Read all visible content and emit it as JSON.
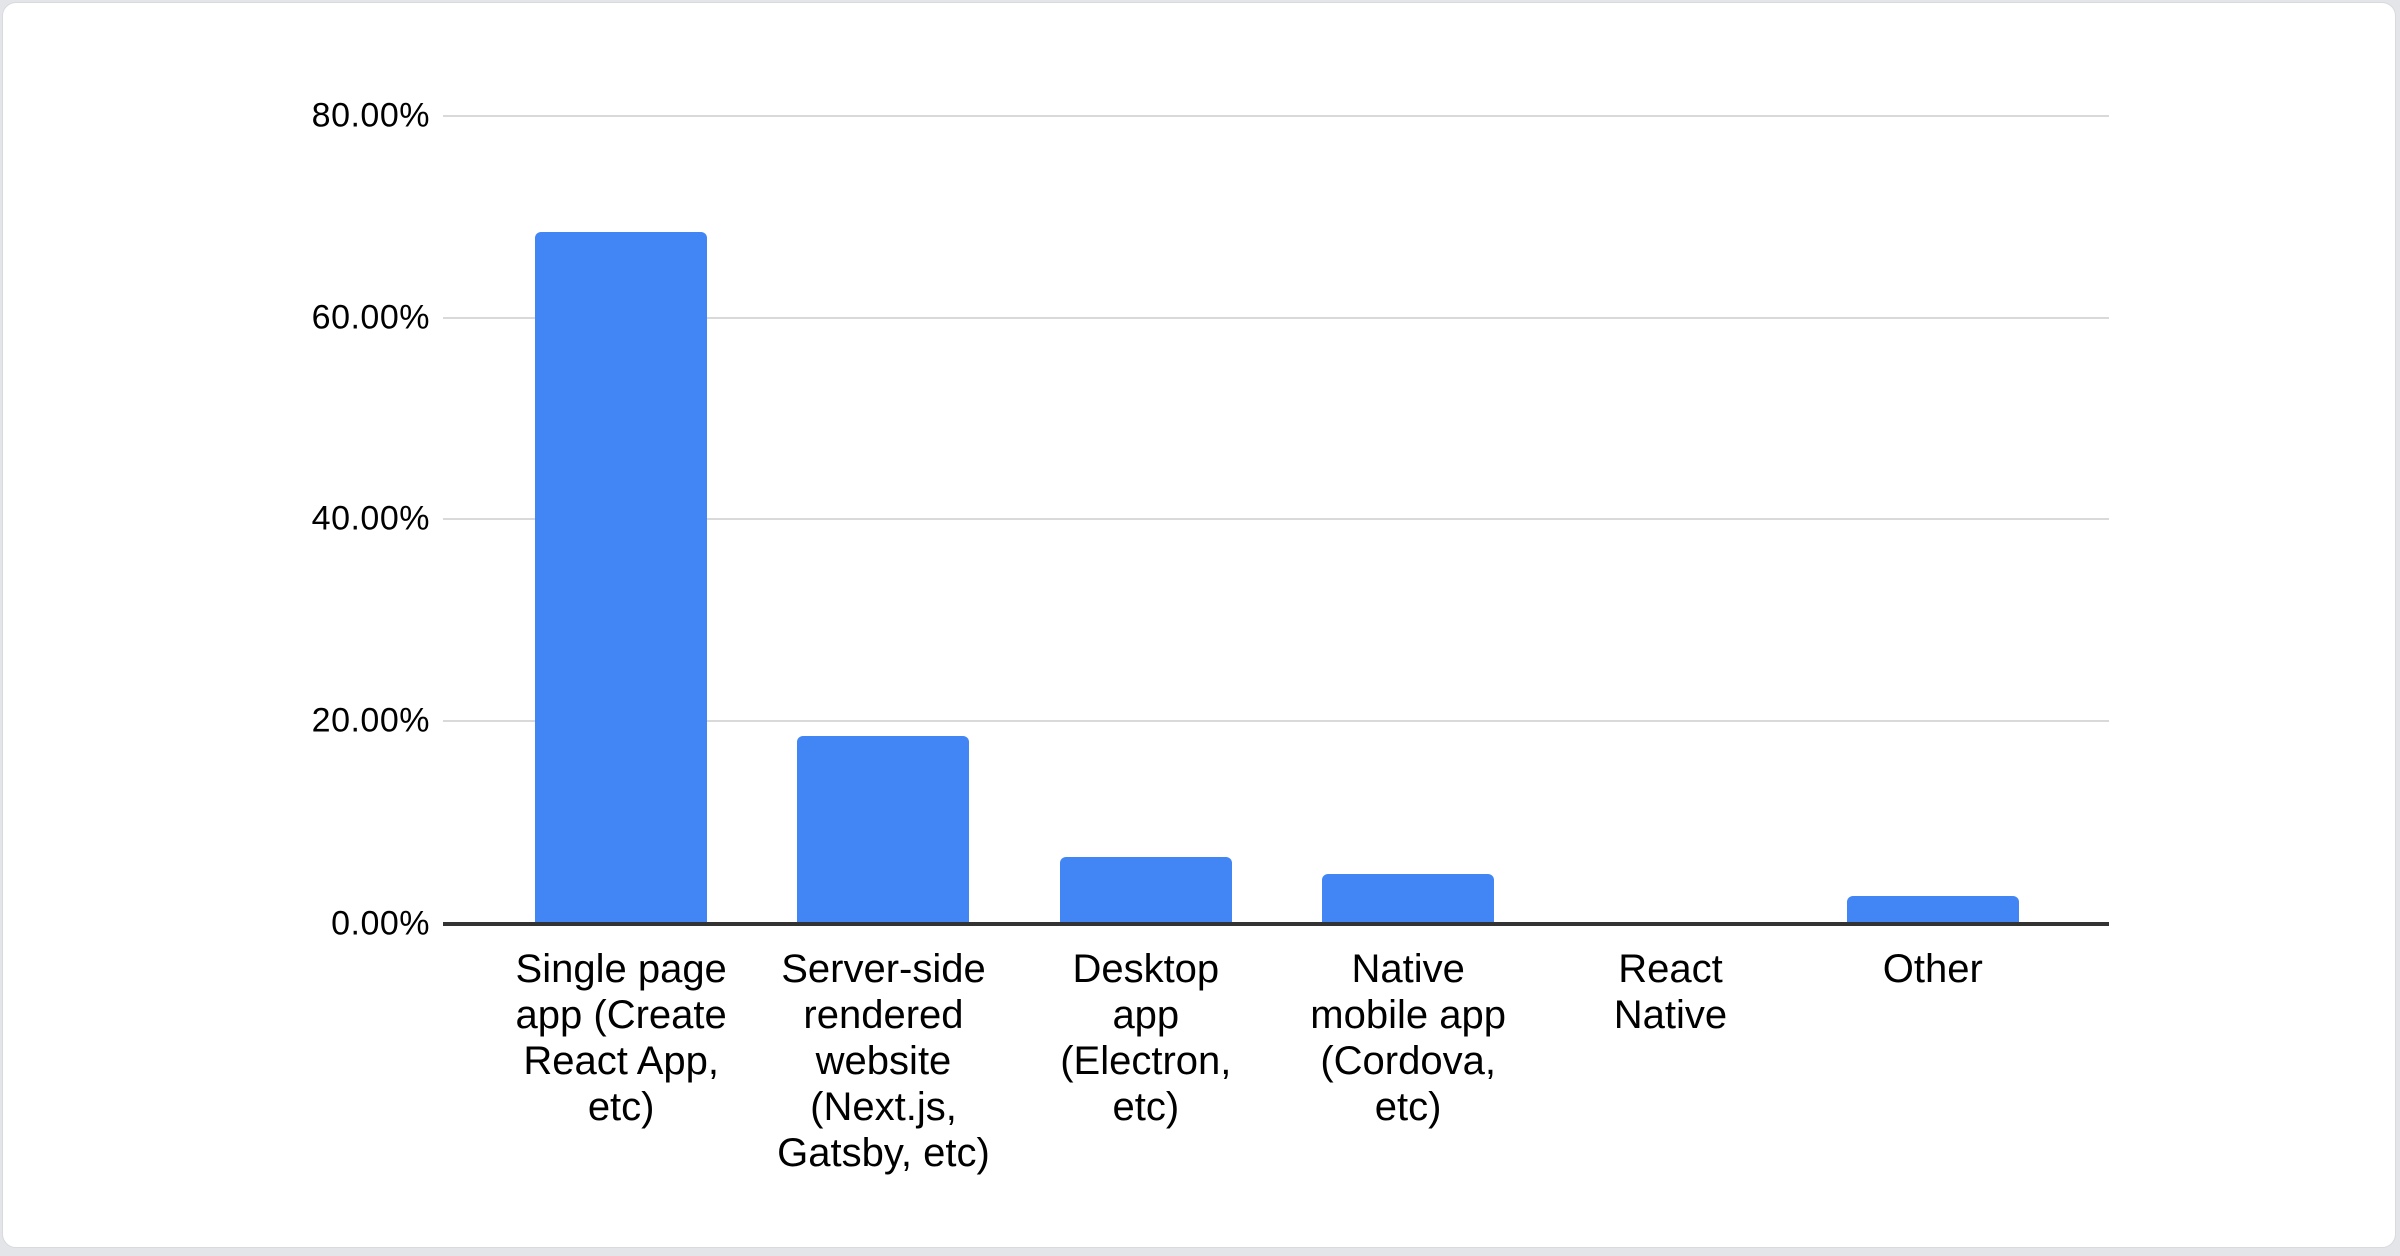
{
  "page": {
    "background_color": "#e3e5e9",
    "card_background_color": "#ffffff",
    "card_border_color": "#d8dade"
  },
  "chart_data": {
    "type": "bar",
    "title": "",
    "xlabel": "",
    "ylabel": "",
    "legend": "none",
    "grid": true,
    "ylim": [
      0,
      80
    ],
    "bar_color": "#4285f4",
    "gridline_color": "#d9d9d9",
    "baseline_color": "#333333",
    "categories": [
      "Single page app (Create React App, etc)",
      "Server-side rendered website (Next.js, Gatsby, etc)",
      "Desktop app (Electron, etc)",
      "Native mobile app (Cordova, etc)",
      "React Native",
      "Other"
    ],
    "categories_wrapped": [
      "Single page\napp (Create\nReact App,\netc)",
      "Server-side\nrendered\nwebsite\n(Next.js,\nGatsby, etc)",
      "Desktop\napp\n(Electron,\netc)",
      "Native\nmobile app\n(Cordova,\netc)",
      "React\nNative",
      "Other"
    ],
    "values": [
      68.5,
      18.5,
      6.5,
      4.8,
      0,
      2.6
    ],
    "unit": "%",
    "yticks": [
      {
        "value": 0,
        "label": "0.00%"
      },
      {
        "value": 20,
        "label": "20.00%"
      },
      {
        "value": 40,
        "label": "40.00%"
      },
      {
        "value": 60,
        "label": "60.00%"
      },
      {
        "value": 80,
        "label": "80.00%"
      }
    ]
  }
}
